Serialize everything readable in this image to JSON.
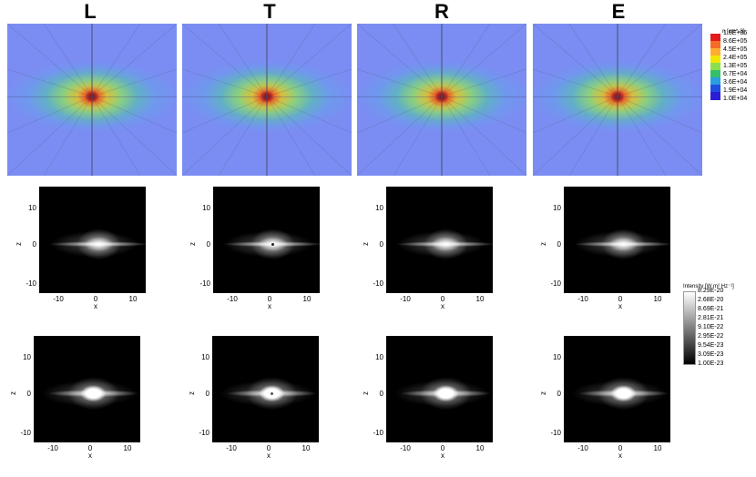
{
  "columns": [
    "L",
    "T",
    "R",
    "E"
  ],
  "density_colorbar": {
    "title": "n [cm^-3]",
    "labels": [
      "1.6E+06",
      "8.6E+05",
      "4.5E+05",
      "2.4E+05",
      "1.3E+05",
      "6.7E+04",
      "3.6E+04",
      "1.9E+04",
      "1.0E+04"
    ],
    "colors": [
      "#e41a1c",
      "#f46d25",
      "#fdae30",
      "#f3e600",
      "#8be04c",
      "#33c06b",
      "#2a9ee0",
      "#1f4fe0",
      "#2b1dd6"
    ]
  },
  "intensity_colorbar": {
    "title": "Intensity [W m² Hz⁻¹]",
    "labels": [
      "8.29E-20",
      "2.68E-20",
      "8.69E-21",
      "2.81E-21",
      "9.10E-22",
      "2.95E-22",
      "9.54E-23",
      "3.09E-23",
      "1.00E-23"
    ]
  },
  "axes": {
    "xlabel": "x",
    "ylabel": "z",
    "yticks": [
      "10",
      "0",
      "-10"
    ],
    "xticks": [
      "-10",
      "0",
      "10"
    ]
  }
}
